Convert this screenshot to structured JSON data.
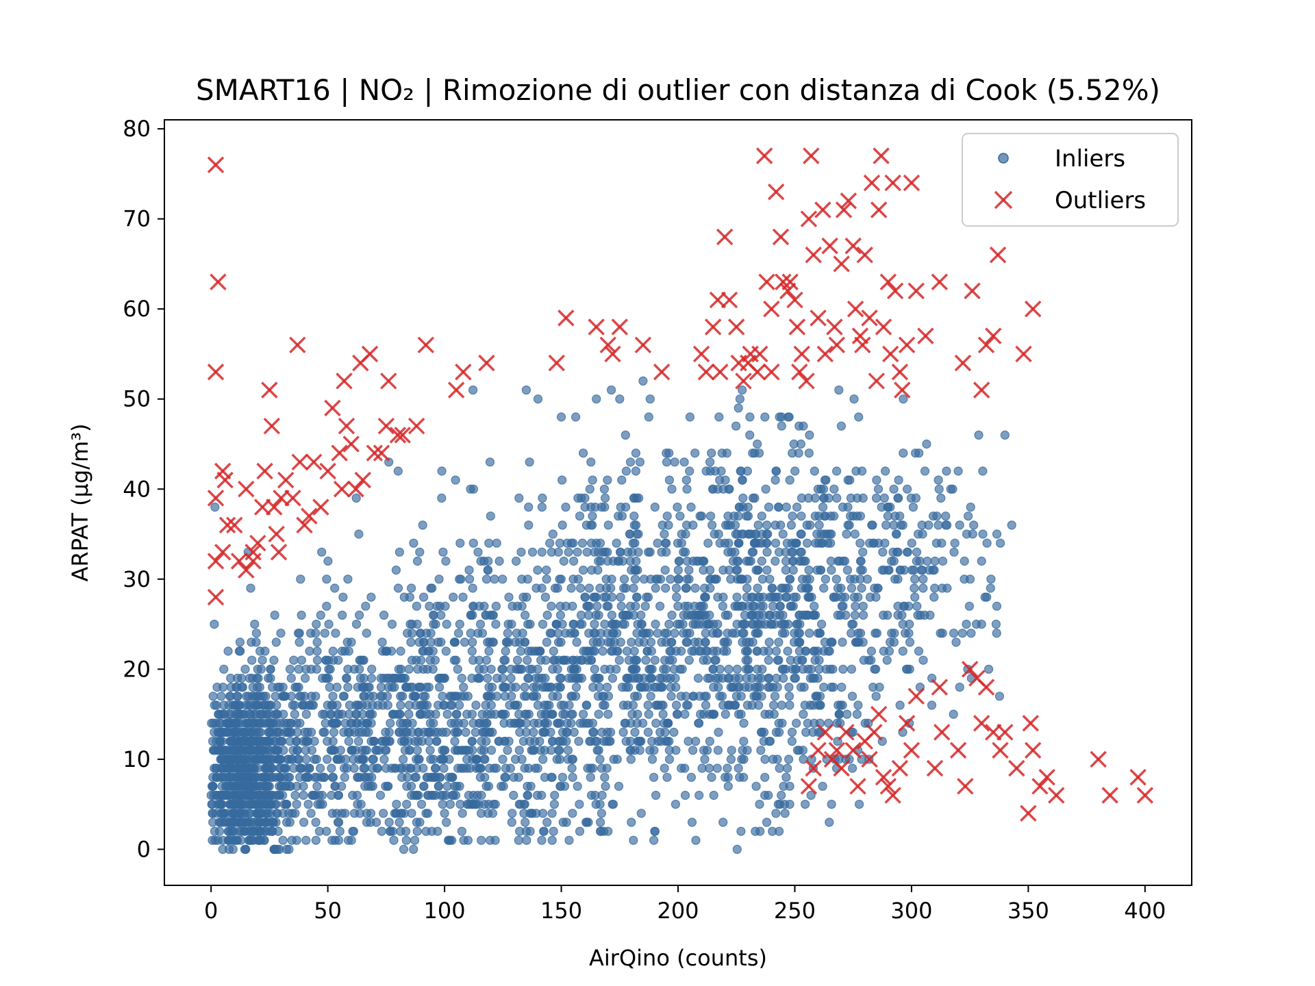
{
  "chart_data": {
    "type": "scatter",
    "title": "SMART16 | NO₂ | Rimozione di outlier con distanza di Cook (5.52%)",
    "xlabel": "AirQino (counts)",
    "ylabel": "ARPAT (µg/m³)",
    "xlim": [
      -20,
      420
    ],
    "ylim": [
      -4,
      81
    ],
    "xticks": [
      "0",
      "50",
      "100",
      "150",
      "200",
      "250",
      "300",
      "350",
      "400"
    ],
    "yticks": [
      "0",
      "10",
      "20",
      "30",
      "40",
      "50",
      "60",
      "70",
      "80"
    ],
    "grid": false,
    "legend_position": "top-right",
    "series": [
      {
        "name": "Inliers",
        "marker": "circle",
        "color": "#376a9e",
        "clusters": [
          {
            "cx": 15,
            "cy": 8,
            "sx": 10,
            "sy": 5,
            "n": 900
          },
          {
            "cx": 60,
            "cy": 12,
            "sx": 28,
            "sy": 8,
            "n": 550
          },
          {
            "cx": 110,
            "cy": 12,
            "sx": 30,
            "sy": 9,
            "n": 500
          },
          {
            "cx": 150,
            "cy": 20,
            "sx": 30,
            "sy": 10,
            "n": 450
          },
          {
            "cx": 190,
            "cy": 25,
            "sx": 25,
            "sy": 10,
            "n": 400
          },
          {
            "cx": 240,
            "cy": 25,
            "sx": 22,
            "sy": 11,
            "n": 600
          },
          {
            "cx": 280,
            "cy": 30,
            "sx": 22,
            "sy": 9,
            "n": 200
          },
          {
            "cx": 310,
            "cy": 30,
            "sx": 14,
            "sy": 7,
            "n": 80
          }
        ],
        "points": [
          [
            150,
            48
          ],
          [
            165,
            50
          ],
          [
            175,
            50
          ],
          [
            185,
            52
          ],
          [
            135,
            51
          ],
          [
            140,
            50
          ],
          [
            190,
            2
          ],
          [
            170,
            2
          ],
          [
            180,
            3
          ],
          [
            340,
            46
          ],
          [
            330,
            25
          ],
          [
            320,
            42
          ],
          [
            330,
            32
          ]
        ]
      },
      {
        "name": "Outliers",
        "marker": "x",
        "color": "#d62728",
        "points": [
          [
            2,
            76
          ],
          [
            3,
            63
          ],
          [
            2,
            53
          ],
          [
            2,
            39
          ],
          [
            2,
            32
          ],
          [
            2,
            28
          ],
          [
            5,
            42
          ],
          [
            6,
            41
          ],
          [
            5,
            33
          ],
          [
            7,
            36
          ],
          [
            10,
            36
          ],
          [
            12,
            32
          ],
          [
            15,
            31
          ],
          [
            15,
            40
          ],
          [
            18,
            33
          ],
          [
            18,
            32
          ],
          [
            20,
            34
          ],
          [
            22,
            38
          ],
          [
            23,
            42
          ],
          [
            25,
            51
          ],
          [
            26,
            47
          ],
          [
            27,
            38
          ],
          [
            28,
            35
          ],
          [
            29,
            33
          ],
          [
            30,
            39
          ],
          [
            32,
            41
          ],
          [
            35,
            39
          ],
          [
            37,
            56
          ],
          [
            38,
            43
          ],
          [
            40,
            36
          ],
          [
            42,
            37
          ],
          [
            44,
            43
          ],
          [
            47,
            38
          ],
          [
            50,
            42
          ],
          [
            52,
            49
          ],
          [
            55,
            44
          ],
          [
            56,
            40
          ],
          [
            57,
            52
          ],
          [
            58,
            47
          ],
          [
            60,
            45
          ],
          [
            62,
            40
          ],
          [
            64,
            54
          ],
          [
            65,
            41
          ],
          [
            68,
            55
          ],
          [
            70,
            44
          ],
          [
            73,
            44
          ],
          [
            75,
            47
          ],
          [
            76,
            52
          ],
          [
            80,
            46
          ],
          [
            82,
            46
          ],
          [
            88,
            47
          ],
          [
            92,
            56
          ],
          [
            105,
            51
          ],
          [
            108,
            53
          ],
          [
            118,
            54
          ],
          [
            148,
            54
          ],
          [
            152,
            59
          ],
          [
            165,
            58
          ],
          [
            170,
            56
          ],
          [
            172,
            55
          ],
          [
            175,
            58
          ],
          [
            185,
            56
          ],
          [
            193,
            53
          ],
          [
            210,
            55
          ],
          [
            212,
            53
          ],
          [
            215,
            58
          ],
          [
            217,
            61
          ],
          [
            218,
            53
          ],
          [
            220,
            68
          ],
          [
            222,
            61
          ],
          [
            225,
            58
          ],
          [
            226,
            54
          ],
          [
            228,
            52
          ],
          [
            230,
            54
          ],
          [
            231,
            55
          ],
          [
            234,
            53
          ],
          [
            235,
            55
          ],
          [
            237,
            77
          ],
          [
            238,
            63
          ],
          [
            240,
            60
          ],
          [
            240,
            53
          ],
          [
            242,
            73
          ],
          [
            244,
            68
          ],
          [
            245,
            63
          ],
          [
            247,
            62
          ],
          [
            248,
            63
          ],
          [
            250,
            61
          ],
          [
            251,
            58
          ],
          [
            252,
            53
          ],
          [
            253,
            55
          ],
          [
            255,
            52
          ],
          [
            256,
            70
          ],
          [
            257,
            77
          ],
          [
            258,
            66
          ],
          [
            260,
            59
          ],
          [
            262,
            71
          ],
          [
            263,
            55
          ],
          [
            265,
            67
          ],
          [
            267,
            58
          ],
          [
            268,
            56
          ],
          [
            270,
            65
          ],
          [
            271,
            71
          ],
          [
            273,
            72
          ],
          [
            275,
            67
          ],
          [
            276,
            60
          ],
          [
            278,
            57
          ],
          [
            279,
            56
          ],
          [
            280,
            66
          ],
          [
            282,
            59
          ],
          [
            283,
            74
          ],
          [
            285,
            52
          ],
          [
            286,
            71
          ],
          [
            287,
            77
          ],
          [
            288,
            58
          ],
          [
            290,
            63
          ],
          [
            291,
            55
          ],
          [
            292,
            74
          ],
          [
            293,
            62
          ],
          [
            295,
            53
          ],
          [
            296,
            51
          ],
          [
            298,
            56
          ],
          [
            300,
            74
          ],
          [
            302,
            62
          ],
          [
            306,
            57
          ],
          [
            312,
            63
          ],
          [
            322,
            54
          ],
          [
            326,
            62
          ],
          [
            330,
            51
          ],
          [
            332,
            56
          ],
          [
            335,
            57
          ],
          [
            337,
            66
          ],
          [
            348,
            55
          ],
          [
            352,
            60
          ],
          [
            256,
            7
          ],
          [
            258,
            9
          ],
          [
            260,
            11
          ],
          [
            263,
            13
          ],
          [
            266,
            10
          ],
          [
            268,
            11
          ],
          [
            270,
            9
          ],
          [
            272,
            13
          ],
          [
            275,
            11
          ],
          [
            277,
            7
          ],
          [
            280,
            12
          ],
          [
            282,
            10
          ],
          [
            284,
            13
          ],
          [
            286,
            15
          ],
          [
            288,
            8
          ],
          [
            290,
            7
          ],
          [
            292,
            6
          ],
          [
            295,
            9
          ],
          [
            298,
            14
          ],
          [
            300,
            11
          ],
          [
            302,
            17
          ],
          [
            310,
            9
          ],
          [
            312,
            18
          ],
          [
            313,
            13
          ],
          [
            320,
            11
          ],
          [
            323,
            7
          ],
          [
            325,
            20
          ],
          [
            328,
            19
          ],
          [
            330,
            14
          ],
          [
            332,
            18
          ],
          [
            335,
            13
          ],
          [
            338,
            11
          ],
          [
            340,
            13
          ],
          [
            345,
            9
          ],
          [
            350,
            4
          ],
          [
            351,
            14
          ],
          [
            352,
            11
          ],
          [
            355,
            7
          ],
          [
            358,
            8
          ],
          [
            362,
            6
          ],
          [
            380,
            10
          ],
          [
            385,
            6
          ],
          [
            397,
            8
          ],
          [
            400,
            6
          ]
        ]
      }
    ]
  }
}
